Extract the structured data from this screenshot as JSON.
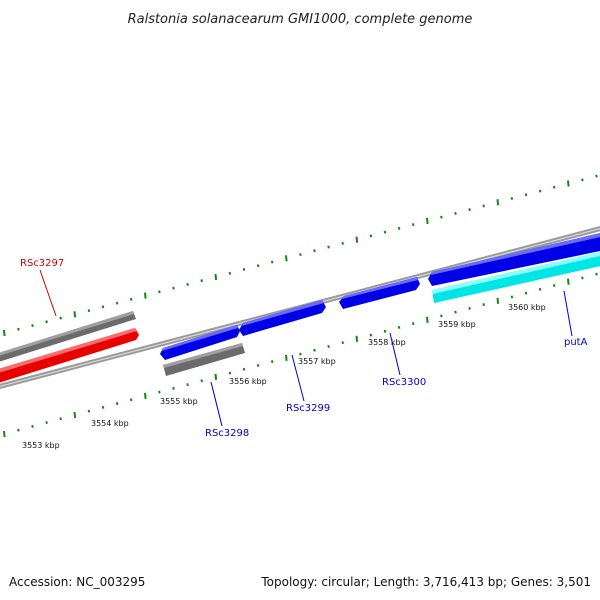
{
  "title": "Ralstonia solanacearum GMI1000, complete genome",
  "footer": {
    "accession": "Accession: NC_003295",
    "stats": "Topology: circular; Length: 3,716,413 bp; Genes: 3,501"
  },
  "colors": {
    "background": "#ffffff",
    "backbone": "#999999",
    "tick": "#118811",
    "gene_blue": "#0000ee",
    "gene_red": "#ee0000",
    "gene_cyan": "#00eeee",
    "gene_gray": "#666666",
    "label_blue": "#0000cc",
    "label_red": "#cc0000"
  },
  "ruler_labels": [
    "3553 kbp",
    "3554 kbp",
    "3555 kbp",
    "3556 kbp",
    "3557 kbp",
    "3558 kbp",
    "3559 kbp",
    "3560 kbp"
  ],
  "gene_labels": [
    {
      "text": "RSc3297",
      "color": "#cc0000"
    },
    {
      "text": "RSc3298",
      "color": "#0000cc"
    },
    {
      "text": "RSc3299",
      "color": "#0000cc"
    },
    {
      "text": "RSc3300",
      "color": "#0000cc"
    },
    {
      "text": "putA",
      "color": "#0000cc"
    }
  ]
}
